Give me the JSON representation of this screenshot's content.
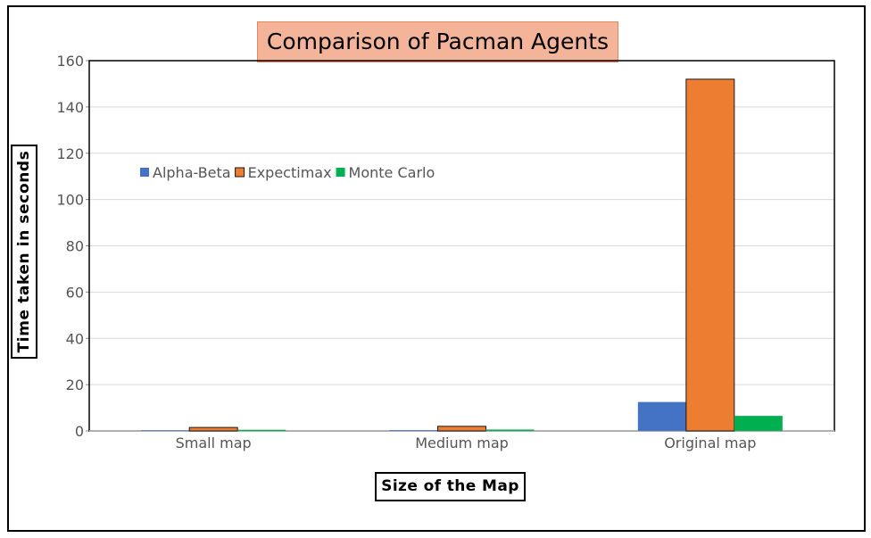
{
  "chart_data": {
    "type": "bar",
    "title": "Comparison of Pacman Agents",
    "xlabel": "Size of the Map",
    "ylabel": "Time taken in seconds",
    "categories": [
      "Small map",
      "Medium map",
      "Original map"
    ],
    "series": [
      {
        "name": "Alpha-Beta",
        "color": "#4472c4",
        "values": [
          0.2,
          0.3,
          12.5
        ]
      },
      {
        "name": "Expectimax",
        "color": "#ed7d31",
        "values": [
          1.5,
          2.0,
          152
        ]
      },
      {
        "name": "Monte Carlo",
        "color": "#00b050",
        "values": [
          0.5,
          0.6,
          6.5
        ]
      }
    ],
    "ylim": [
      0,
      160
    ],
    "yticks": [
      "0",
      "20",
      "40",
      "60",
      "80",
      "100",
      "120",
      "140",
      "160"
    ],
    "grid": true,
    "legend_position": "top-left"
  }
}
